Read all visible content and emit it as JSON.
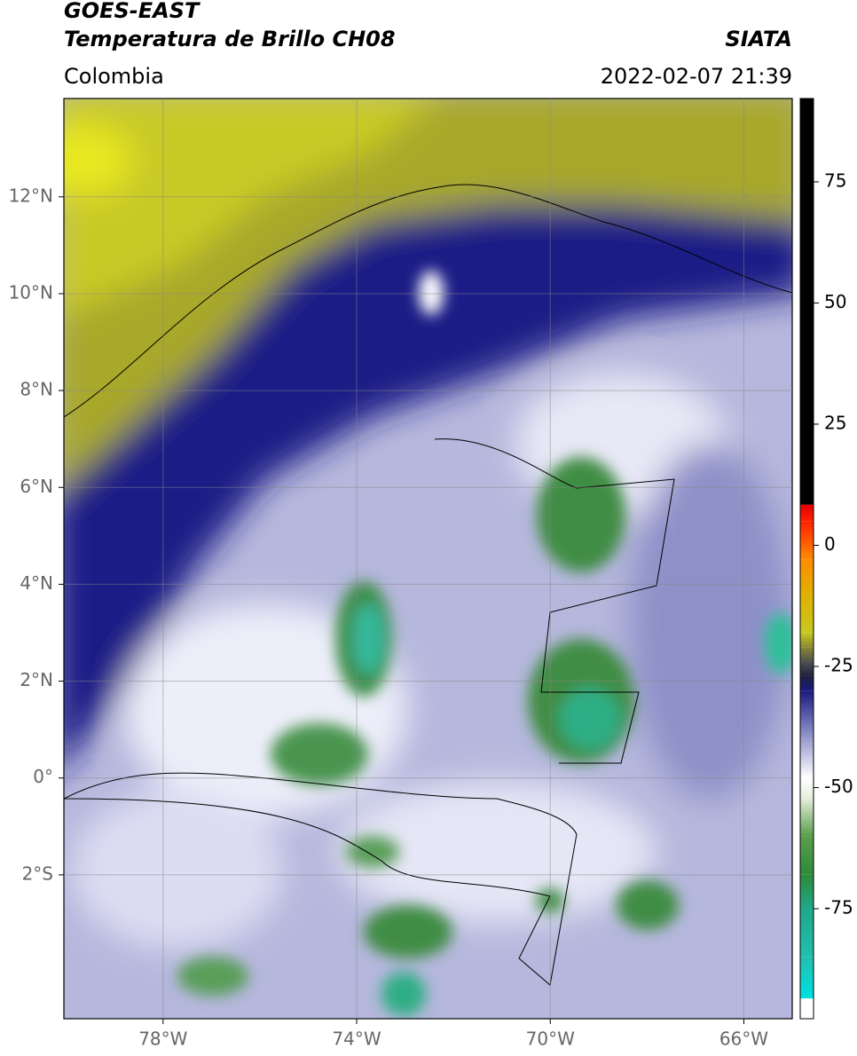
{
  "header": {
    "title_line1": "GOES-EAST",
    "title_line2": "Temperatura de Brillo CH08",
    "source": "SIATA",
    "region": "Colombia",
    "datetime": "2022-02-07 21:39"
  },
  "map": {
    "xlim": [
      -80.05,
      -65.0
    ],
    "ylim": [
      -4.97,
      14.03
    ],
    "grid": true,
    "lon_ticks": [
      {
        "value": -78,
        "label": "78°W"
      },
      {
        "value": -74,
        "label": "74°W"
      },
      {
        "value": -70,
        "label": "70°W"
      },
      {
        "value": -66,
        "label": "66°W"
      }
    ],
    "lat_ticks": [
      {
        "value": 12,
        "label": "12°N"
      },
      {
        "value": 10,
        "label": "10°N"
      },
      {
        "value": 8,
        "label": "8°N"
      },
      {
        "value": 6,
        "label": "6°N"
      },
      {
        "value": 4,
        "label": "4°N"
      },
      {
        "value": 2,
        "label": "2°N"
      },
      {
        "value": 0,
        "label": "0°"
      },
      {
        "value": -2,
        "label": "2°S"
      }
    ]
  },
  "colorbar": {
    "lim": [
      -97.7,
      92.2
    ],
    "ticks": [
      75,
      50,
      25,
      0,
      -25,
      -50,
      -75
    ],
    "stops": [
      {
        "value": -97.7,
        "color": "#ffffff"
      },
      {
        "value": -93.5,
        "color": "#ffffff"
      },
      {
        "value": -93.5,
        "color": "#00e0e0"
      },
      {
        "value": -85,
        "color": "#20c0b0"
      },
      {
        "value": -75,
        "color": "#1fa88a"
      },
      {
        "value": -68,
        "color": "#2e8b3a"
      },
      {
        "value": -60,
        "color": "#5a9e4a"
      },
      {
        "value": -52,
        "color": "#e8f0e0"
      },
      {
        "value": -48,
        "color": "#ffffff"
      },
      {
        "value": -40,
        "color": "#9a9cd0"
      },
      {
        "value": -30,
        "color": "#1a1a80"
      },
      {
        "value": -27,
        "color": "#202040"
      },
      {
        "value": -24,
        "color": "#505050"
      },
      {
        "value": -21,
        "color": "#8a8a30"
      },
      {
        "value": -18,
        "color": "#c8c820"
      },
      {
        "value": -10,
        "color": "#e0b000"
      },
      {
        "value": -3,
        "color": "#ff8c00"
      },
      {
        "value": 5,
        "color": "#ff2000"
      },
      {
        "value": 8.4,
        "color": "#e00000"
      },
      {
        "value": 8.4,
        "color": "#000000"
      },
      {
        "value": 92.2,
        "color": "#000000"
      }
    ]
  }
}
